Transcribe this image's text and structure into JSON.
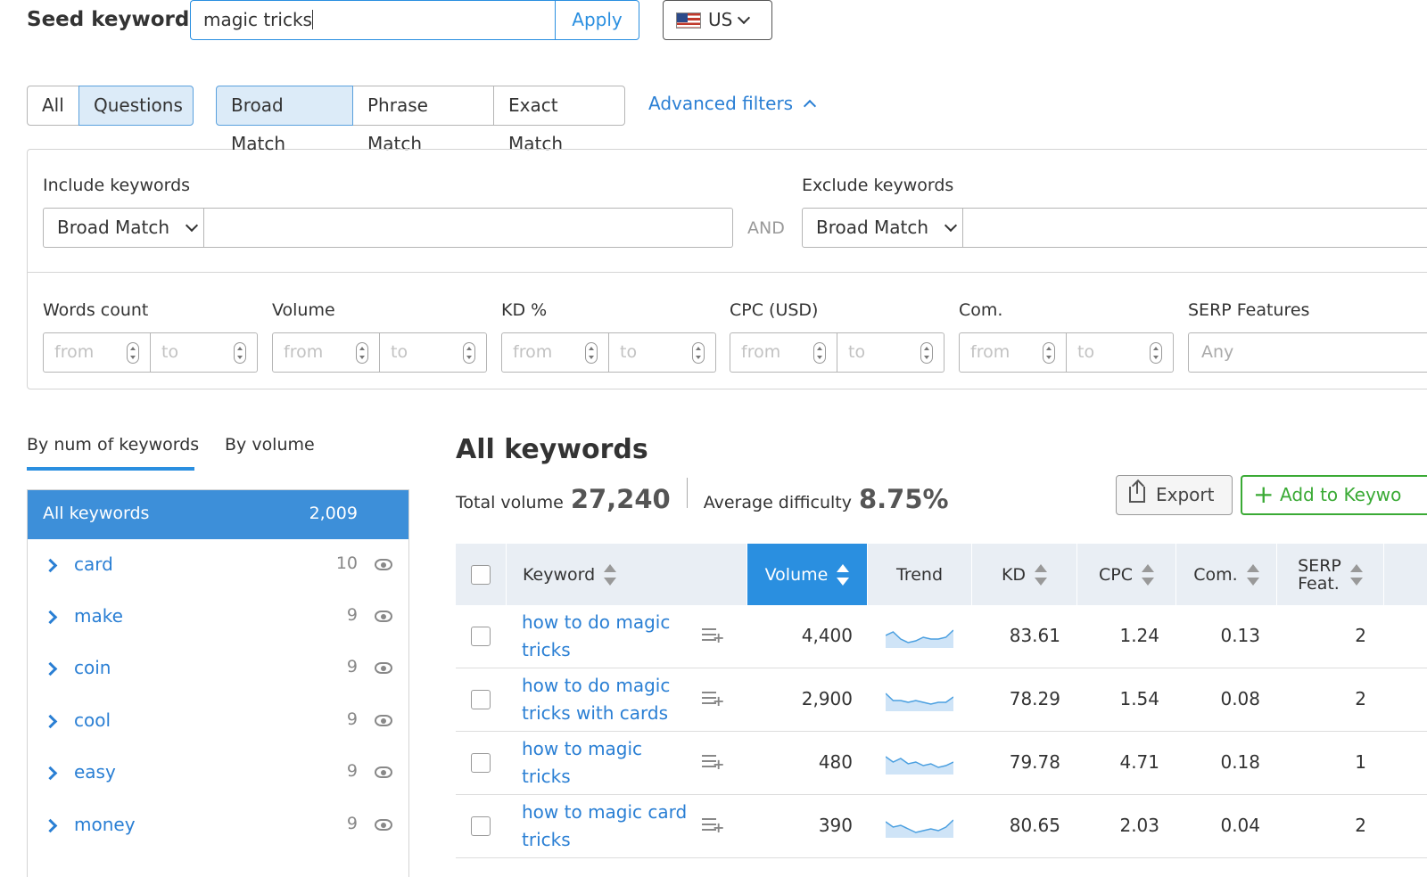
{
  "seed": {
    "label": "Seed keyword:",
    "value": "magic tricks",
    "apply": "Apply",
    "country": "US"
  },
  "tabs": {
    "all": "All",
    "questions": "Questions",
    "broad": "Broad Match",
    "phrase": "Phrase Match",
    "exact": "Exact Match",
    "advanced": "Advanced filters"
  },
  "filters": {
    "include_label": "Include keywords",
    "exclude_label": "Exclude keywords",
    "include_match": "Broad Match",
    "exclude_match": "Broad Match",
    "and": "AND",
    "words_count": "Words count",
    "volume": "Volume",
    "kd": "KD %",
    "cpc": "CPC (USD)",
    "com": "Com.",
    "serp": "SERP Features",
    "from": "from",
    "to": "to",
    "any": "Any"
  },
  "grouping": {
    "tab_num": "By num of keywords",
    "tab_volume": "By volume",
    "all_label": "All keywords",
    "all_count": "2,009",
    "items": [
      {
        "name": "card",
        "count": "10"
      },
      {
        "name": "make",
        "count": "9"
      },
      {
        "name": "coin",
        "count": "9"
      },
      {
        "name": "cool",
        "count": "9"
      },
      {
        "name": "easy",
        "count": "9"
      },
      {
        "name": "money",
        "count": "9"
      }
    ]
  },
  "main": {
    "title": "All keywords",
    "total_volume_label": "Total volume",
    "total_volume": "27,240",
    "avg_difficulty_label": "Average difficulty",
    "avg_difficulty": "8.75%",
    "export": "Export",
    "add_to": "Add to Keywo"
  },
  "table": {
    "headers": {
      "keyword": "Keyword",
      "volume": "Volume",
      "trend": "Trend",
      "kd": "KD",
      "cpc": "CPC",
      "com": "Com.",
      "serp_line1": "SERP",
      "serp_line2": "Feat."
    },
    "rows": [
      {
        "keyword": "how to do magic tricks",
        "volume": "4,400",
        "kd": "83.61",
        "cpc": "1.24",
        "com": "0.13",
        "serp": "2",
        "trend": [
          6,
          8,
          4,
          2,
          3,
          5,
          4,
          4,
          5,
          9
        ]
      },
      {
        "keyword": "how to do magic tricks with cards",
        "volume": "2,900",
        "kd": "78.29",
        "cpc": "1.54",
        "com": "0.08",
        "serp": "2",
        "trend": [
          9,
          5,
          5,
          4,
          5,
          4,
          3,
          4,
          4,
          7
        ]
      },
      {
        "keyword": "how to magic tricks",
        "volume": "480",
        "kd": "79.78",
        "cpc": "4.71",
        "com": "0.18",
        "serp": "1",
        "trend": [
          9,
          6,
          8,
          5,
          6,
          4,
          5,
          3,
          4,
          6
        ]
      },
      {
        "keyword": "how to magic card tricks",
        "volume": "390",
        "kd": "80.65",
        "cpc": "2.03",
        "com": "0.04",
        "serp": "2",
        "trend": [
          8,
          5,
          6,
          4,
          2,
          3,
          4,
          3,
          5,
          9
        ]
      }
    ]
  },
  "colors": {
    "accent": "#2a8fe0",
    "link": "#2a7fd4",
    "add": "#3aaa35",
    "trend_line": "#4a9fe0",
    "trend_fill": "#cfe4f7"
  }
}
